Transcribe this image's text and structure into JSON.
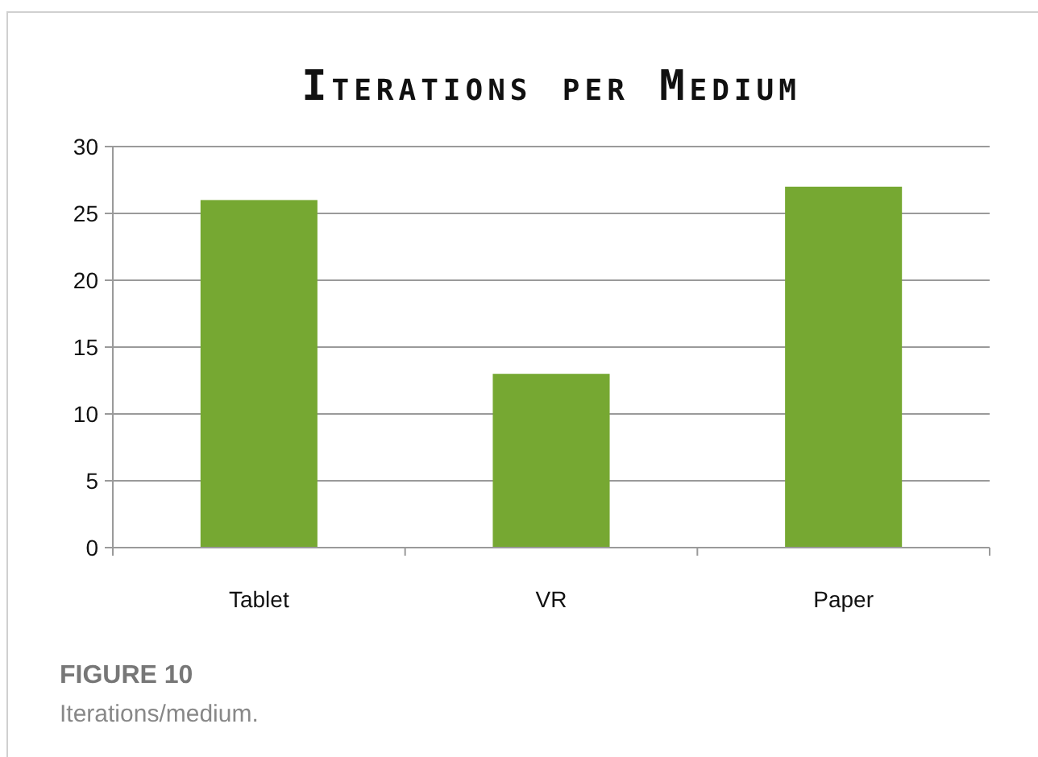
{
  "chart_data": {
    "type": "bar",
    "title": "Iterations per Medium",
    "categories": [
      "Tablet",
      "VR",
      "Paper"
    ],
    "values": [
      26,
      13,
      27
    ],
    "color": "#76a832",
    "ylim": [
      0,
      30
    ],
    "yticks": [
      0,
      5,
      10,
      15,
      20,
      25,
      30
    ],
    "grid": "y",
    "annotations": [
      "FIGURE 10",
      "Iterations/medium."
    ]
  }
}
